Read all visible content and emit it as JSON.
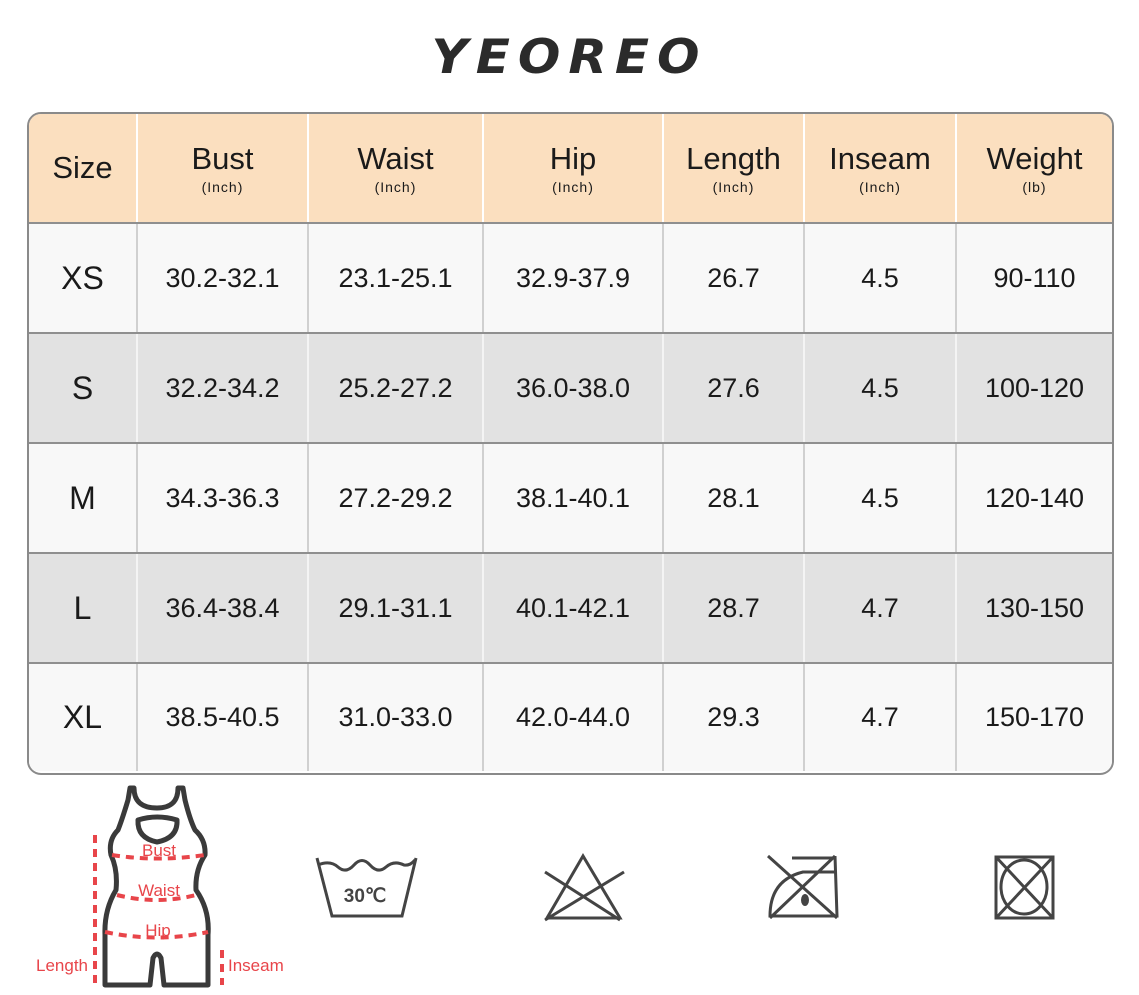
{
  "brand": "YEOREO",
  "colors": {
    "header_bg": "#fbdfbf",
    "row_light": "#f8f8f8",
    "row_dark": "#e2e2e2",
    "measure_red": "#e8454a",
    "icon_gray": "#444444"
  },
  "table": {
    "headers": [
      {
        "label": "Size",
        "unit": ""
      },
      {
        "label": "Bust",
        "unit": "(Inch)"
      },
      {
        "label": "Waist",
        "unit": "(Inch)"
      },
      {
        "label": "Hip",
        "unit": "(Inch)"
      },
      {
        "label": "Length",
        "unit": "(Inch)"
      },
      {
        "label": "Inseam",
        "unit": "(Inch)"
      },
      {
        "label": "Weight",
        "unit": "(lb)"
      }
    ],
    "rows": [
      [
        "XS",
        "30.2-32.1",
        "23.1-25.1",
        "32.9-37.9",
        "26.7",
        "4.5",
        "90-110"
      ],
      [
        "S",
        "32.2-34.2",
        "25.2-27.2",
        "36.0-38.0",
        "27.6",
        "4.5",
        "100-120"
      ],
      [
        "M",
        "34.3-36.3",
        "27.2-29.2",
        "38.1-40.1",
        "28.1",
        "4.5",
        "120-140"
      ],
      [
        "L",
        "36.4-38.4",
        "29.1-31.1",
        "40.1-42.1",
        "28.7",
        "4.7",
        "130-150"
      ],
      [
        "XL",
        "38.5-40.5",
        "31.0-33.0",
        "42.0-44.0",
        "29.3",
        "4.7",
        "150-170"
      ]
    ]
  },
  "diagram": {
    "bust": "Bust",
    "waist": "Waist",
    "hip": "Hip",
    "length": "Length",
    "inseam": "Inseam"
  },
  "care": {
    "wash_temp": "30℃",
    "icons": [
      "wash-30-icon",
      "no-bleach-icon",
      "no-iron-icon",
      "no-tumble-dry-icon"
    ]
  }
}
